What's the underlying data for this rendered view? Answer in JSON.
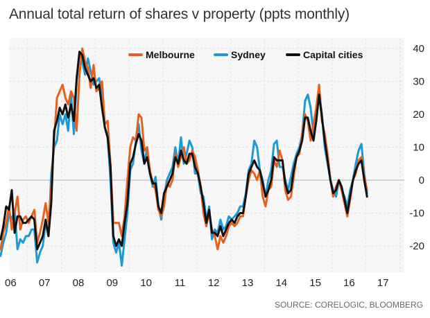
{
  "title": "Annual total return of shares v property (ppts monthly)",
  "source": "SOURCE: CORELOGIC, BLOOMBERG",
  "chart_data": {
    "type": "line",
    "title": "Annual total return of shares v property (ppts monthly)",
    "xlabel": "",
    "ylabel": "",
    "x_start": 2006.2,
    "x_step": 0.0833,
    "xlim": [
      2006.2,
      2018.0
    ],
    "ylim": [
      -27,
      40
    ],
    "y_ticks": [
      40,
      30,
      20,
      10,
      0,
      -10,
      -20
    ],
    "x_tick_labels": [
      "06",
      "07",
      "08",
      "09",
      "10",
      "11",
      "12",
      "13",
      "14",
      "15",
      "16",
      "17"
    ],
    "grid": true,
    "legend_position": "top",
    "series": [
      {
        "name": "Melbourne",
        "color": "#e8611c",
        "values": [
          -21,
          -16,
          -13,
          -8,
          -15,
          -10,
          -5,
          -15,
          -12,
          -11,
          -13,
          -11,
          -9,
          -19,
          -16,
          -12,
          -7,
          -13,
          -2,
          12,
          25,
          27,
          29,
          25,
          23,
          27,
          25,
          15,
          32,
          40,
          36,
          34,
          28,
          35,
          27,
          28,
          30,
          17,
          18,
          5,
          -13,
          -13,
          -13,
          -17,
          -11,
          0,
          10,
          13,
          12,
          20,
          19,
          9,
          10,
          3,
          -1,
          -3,
          -9,
          -11,
          -8,
          -1,
          -2,
          0,
          8,
          4,
          7,
          10,
          5,
          6,
          9,
          7,
          3,
          -2,
          -10,
          -14,
          -10,
          -15,
          -17,
          -21,
          -17,
          -19,
          -17,
          -14,
          -13,
          -14,
          -13,
          -11,
          -11,
          -5,
          0,
          3,
          2,
          0,
          3,
          -5,
          -8,
          -3,
          -2,
          6,
          4,
          9,
          6,
          -3,
          -6,
          -5,
          1,
          7,
          8,
          14,
          20,
          18,
          12,
          17,
          22,
          29,
          18,
          14,
          8,
          0,
          -5,
          -2,
          0,
          -3,
          -7,
          -11,
          -6,
          0,
          2,
          6,
          7,
          1,
          -3
        ]
      },
      {
        "name": "Sydney",
        "color": "#1b9ad6",
        "values": [
          -23,
          -19,
          -16,
          -10,
          -12,
          -9,
          -21,
          -18,
          -19,
          -17,
          -17,
          -15,
          -15,
          -25,
          -22,
          -20,
          -13,
          -17,
          2,
          10,
          12,
          20,
          17,
          20,
          15,
          26,
          14,
          30,
          39,
          36,
          32,
          37,
          33,
          29,
          30,
          31,
          25,
          16,
          13,
          0,
          -19,
          -22,
          -19,
          -26,
          -18,
          -10,
          3,
          5,
          12,
          17,
          9,
          5,
          10,
          2,
          -2,
          1,
          -8,
          -12,
          -5,
          0,
          2,
          4,
          10,
          5,
          13,
          5,
          8,
          12,
          10,
          2,
          2,
          -4,
          -5,
          -12,
          -8,
          -18,
          -15,
          -16,
          -12,
          -15,
          -14,
          -11,
          -12,
          -11,
          -10,
          -8,
          -8,
          -4,
          3,
          5,
          12,
          10,
          3,
          0,
          -5,
          0,
          3,
          11,
          12,
          4,
          4,
          0,
          -3,
          1,
          5,
          8,
          10,
          14,
          24,
          26,
          22,
          14,
          18,
          27,
          20,
          10,
          5,
          0,
          -3,
          -5,
          0,
          -3,
          -5,
          -8,
          -3,
          0,
          5,
          9,
          11,
          2,
          -4
        ]
      },
      {
        "name": "Capital cities",
        "color": "#111111",
        "values": [
          -18,
          -14,
          -8,
          -9,
          -3,
          -16,
          -11,
          -11,
          -13,
          -13,
          -12,
          -11,
          -12,
          -21,
          -19,
          -17,
          -12,
          -17,
          -7,
          15,
          18,
          22,
          20,
          23,
          19,
          23,
          18,
          31,
          39,
          38,
          34,
          32,
          30,
          31,
          28,
          29,
          22,
          16,
          13,
          4,
          -17,
          -20,
          -18,
          -20,
          -13,
          -7,
          5,
          7,
          11,
          14,
          12,
          5,
          7,
          2,
          -1,
          -1,
          -8,
          -10,
          -4,
          -2,
          0,
          2,
          7,
          5,
          9,
          6,
          5,
          8,
          8,
          4,
          2,
          -2,
          -7,
          -13,
          -9,
          -16,
          -16,
          -17,
          -14,
          -17,
          -15,
          -13,
          -12,
          -13,
          -11,
          -10,
          -10,
          -5,
          2,
          4,
          6,
          4,
          3,
          -1,
          -5,
          -3,
          0,
          7,
          6,
          6,
          6,
          -1,
          -4,
          -3,
          3,
          7,
          9,
          12,
          19,
          19,
          15,
          12,
          18,
          26,
          19,
          12,
          6,
          0,
          -4,
          -3,
          0,
          -2,
          -6,
          -10,
          -5,
          0,
          3,
          5,
          6,
          0,
          -5
        ]
      }
    ]
  }
}
